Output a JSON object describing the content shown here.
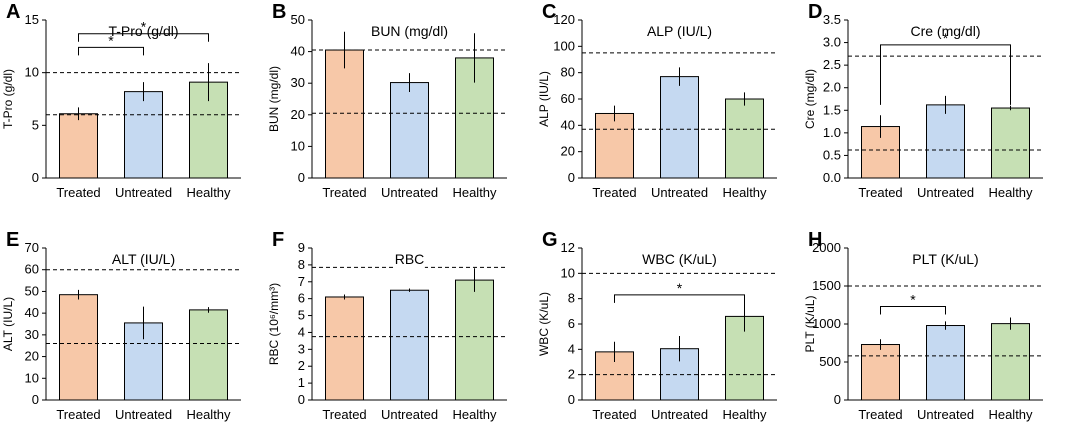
{
  "figure": {
    "colors": {
      "Treated": "#f7c8a8",
      "Untreated": "#c5d9f1",
      "Healthy": "#c6e0b4",
      "stroke": "#000000"
    }
  },
  "chart_data": [
    {
      "panel": "A",
      "type": "bar",
      "title": "T-Pro (g/dl)",
      "ylabel": "T-Pro (g/dl)",
      "categories": [
        "Treated",
        "Untreated",
        "Healthy"
      ],
      "values": [
        6.1,
        8.2,
        9.1
      ],
      "errors": [
        0.6,
        0.9,
        1.8
      ],
      "ylim": [
        0,
        15
      ],
      "yticks": [
        0,
        5,
        10,
        15
      ],
      "ytick_labels": [
        "0",
        "5",
        "10",
        "15"
      ],
      "ref_lines": [
        6,
        10
      ],
      "significance": [
        {
          "from": 0,
          "to": 1,
          "y": 12.4,
          "label": "*",
          "bracket": "up"
        },
        {
          "from": 0,
          "to": 2,
          "y": 13.7,
          "label": "*",
          "bracket": "up"
        }
      ]
    },
    {
      "panel": "B",
      "type": "bar",
      "title": "BUN (mg/dl)",
      "ylabel": "BUN (mg/dl)",
      "categories": [
        "Treated",
        "Untreated",
        "Healthy"
      ],
      "values": [
        40.5,
        30.2,
        38.0
      ],
      "errors": [
        5.8,
        3.0,
        7.8
      ],
      "ylim": [
        0,
        50
      ],
      "yticks": [
        0,
        10,
        20,
        30,
        40,
        50
      ],
      "ytick_labels": [
        "0",
        "10",
        "20",
        "30",
        "40",
        "50"
      ],
      "ref_lines": [
        20.5,
        40.5
      ],
      "significance": []
    },
    {
      "panel": "C",
      "type": "bar",
      "title": "ALP (IU/L)",
      "ylabel": "ALP (IU/L)",
      "categories": [
        "Treated",
        "Untreated",
        "Healthy"
      ],
      "values": [
        49,
        77,
        60
      ],
      "errors": [
        6,
        7,
        5
      ],
      "ylim": [
        0,
        120
      ],
      "yticks": [
        0,
        20,
        40,
        60,
        80,
        100,
        120
      ],
      "ytick_labels": [
        "0",
        "20",
        "40",
        "60",
        "80",
        "100",
        "120"
      ],
      "ref_lines": [
        37,
        95
      ],
      "significance": []
    },
    {
      "panel": "D",
      "type": "bar",
      "title": "Cre (mg/dl)",
      "ylabel": "Cre (mg/dl)",
      "categories": [
        "Treated",
        "Untreated",
        "Healthy"
      ],
      "values": [
        1.14,
        1.62,
        1.55
      ],
      "errors": [
        0.25,
        0.2,
        0.05
      ],
      "ylim": [
        0,
        3.5
      ],
      "yticks": [
        0,
        0.5,
        1.0,
        1.5,
        2.0,
        2.5,
        3.0,
        3.5
      ],
      "ytick_labels": [
        "0.0",
        "0.5",
        "1.0",
        "1.5",
        "2.0",
        "2.5",
        "3.0",
        "3.5"
      ],
      "ref_lines": [
        0.62,
        2.7
      ],
      "significance": [
        {
          "from": 0,
          "to": 2,
          "y": 2.95,
          "label": "*",
          "bracket": "down",
          "drop_to": 1.62
        }
      ]
    },
    {
      "panel": "E",
      "type": "bar",
      "title": "ALT (IU/L)",
      "ylabel": "ALT (IU/L)",
      "categories": [
        "Treated",
        "Untreated",
        "Healthy"
      ],
      "values": [
        48.5,
        35.5,
        41.5
      ],
      "errors": [
        2.2,
        7.5,
        1.3
      ],
      "ylim": [
        0,
        70
      ],
      "yticks": [
        0,
        10,
        20,
        30,
        40,
        50,
        60,
        70
      ],
      "ytick_labels": [
        "0",
        "10",
        "20",
        "30",
        "40",
        "50",
        "60",
        "70"
      ],
      "ref_lines": [
        26,
        60
      ],
      "significance": []
    },
    {
      "panel": "F",
      "type": "bar",
      "title": "RBC",
      "ylabel": "RBC (10⁶/mm³)",
      "categories": [
        "Treated",
        "Untreated",
        "Healthy"
      ],
      "values": [
        6.1,
        6.5,
        7.1
      ],
      "errors": [
        0.15,
        0.1,
        0.7
      ],
      "ylim": [
        0,
        9
      ],
      "yticks": [
        0,
        1,
        2,
        3,
        4,
        5,
        6,
        7,
        8,
        9
      ],
      "ytick_labels": [
        "0",
        "1",
        "2",
        "3",
        "4",
        "5",
        "6",
        "7",
        "8",
        "9"
      ],
      "ref_lines": [
        3.75,
        7.85
      ],
      "significance": []
    },
    {
      "panel": "G",
      "type": "bar",
      "title": "WBC (K/uL)",
      "ylabel": "WBC (K/uL)",
      "categories": [
        "Treated",
        "Untreated",
        "Healthy"
      ],
      "values": [
        3.8,
        4.05,
        6.6
      ],
      "errors": [
        0.8,
        1.0,
        1.2
      ],
      "ylim": [
        0,
        12
      ],
      "yticks": [
        0,
        2,
        4,
        6,
        8,
        10,
        12
      ],
      "ytick_labels": [
        "0",
        "2",
        "4",
        "6",
        "8",
        "10",
        "12"
      ],
      "ref_lines": [
        2,
        10
      ],
      "significance": [
        {
          "from": 0,
          "to": 2,
          "y": 8.3,
          "label": "*",
          "bracket": "up"
        }
      ]
    },
    {
      "panel": "H",
      "type": "bar",
      "title": "PLT (K/uL)",
      "ylabel": "PLT (K/uL)",
      "categories": [
        "Treated",
        "Untreated",
        "Healthy"
      ],
      "values": [
        730,
        980,
        1005
      ],
      "errors": [
        70,
        55,
        80
      ],
      "ylim": [
        0,
        2000
      ],
      "yticks": [
        0,
        500,
        1000,
        1500,
        2000
      ],
      "ytick_labels": [
        "0",
        "500",
        "1000",
        "1500",
        "2000"
      ],
      "ref_lines": [
        580,
        1500
      ],
      "significance": [
        {
          "from": 0,
          "to": 1,
          "y": 1230,
          "label": "*",
          "bracket": "up"
        }
      ]
    }
  ]
}
